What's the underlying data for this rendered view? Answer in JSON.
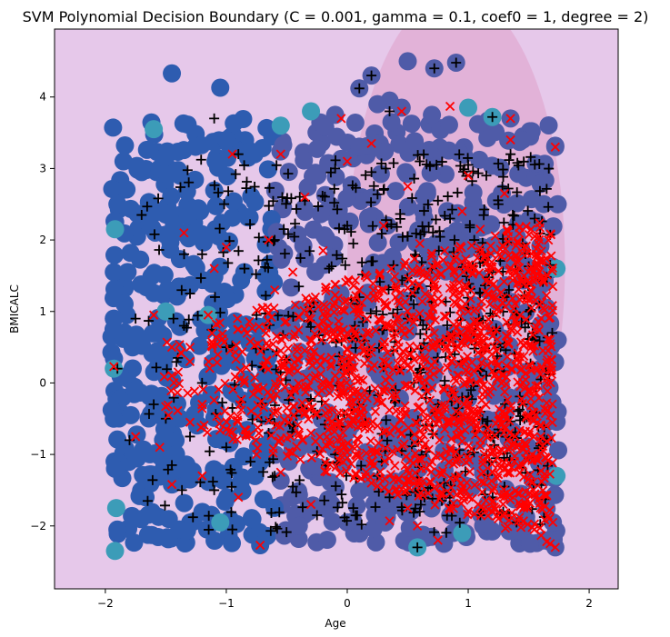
{
  "chart_data": {
    "type": "scatter",
    "title": "SVM Polynomial Decision Boundary (C = 0.001, gamma = 0.1, coef0 = 1, degree = 2)",
    "xlabel": "Age",
    "ylabel": "BMICALC",
    "xlim": [
      -2.42,
      2.24
    ],
    "ylim": [
      -2.88,
      4.95
    ],
    "xticks": [
      -2,
      -1,
      0,
      1,
      2
    ],
    "yticks": [
      -2,
      -1,
      0,
      1,
      2,
      3,
      4
    ],
    "grid": false,
    "background_region": {
      "color": "#e6c8ea",
      "inner_region_color": "#e2b2d8",
      "inner_region_center": [
        0.9,
        1.65
      ],
      "inner_region_radii": [
        0.9,
        3.8
      ]
    },
    "colors": {
      "support_vector_far": "#2e5cb0",
      "support_vector_near": "#4f5ba8",
      "support_vector_highlight": "#3c9cb8",
      "class_plus": "#000000",
      "class_x": "#ff0000"
    },
    "x_range_data": [
      -1.95,
      1.75
    ],
    "y_range_data": [
      -2.35,
      4.5
    ],
    "series": [
      {
        "marker": "o",
        "points": [
          [
            -1.45,
            4.33
          ],
          [
            -1.05,
            4.13
          ],
          [
            0.5,
            4.5
          ],
          [
            0.72,
            4.4
          ],
          [
            0.2,
            4.3
          ],
          [
            0.1,
            4.12
          ],
          [
            -1.92,
            -2.35
          ],
          [
            -1.9,
            -2.05
          ],
          [
            -0.72,
            -2.27
          ],
          [
            0.58,
            -2.3
          ],
          [
            1.72,
            -2.3
          ],
          [
            -1.85,
            3.1
          ],
          [
            -1.6,
            3.55
          ],
          [
            -1.7,
            2.95
          ],
          [
            -1.9,
            2.5
          ],
          [
            -1.92,
            2.15
          ],
          [
            -1.93,
            1.55
          ],
          [
            -1.93,
            0.9
          ],
          [
            -1.93,
            0.2
          ],
          [
            -1.93,
            -0.5
          ],
          [
            -1.92,
            -1.2
          ],
          [
            -1.91,
            -1.75
          ],
          [
            1.72,
            3.3
          ],
          [
            1.74,
            2.5
          ],
          [
            1.73,
            1.6
          ],
          [
            1.74,
            0.6
          ],
          [
            1.74,
            -0.4
          ],
          [
            1.73,
            -1.3
          ],
          [
            1.7,
            -1.95
          ],
          [
            1.35,
            3.7
          ],
          [
            1.0,
            3.85
          ],
          [
            0.45,
            3.85
          ],
          [
            -0.1,
            3.75
          ],
          [
            -0.55,
            3.6
          ],
          [
            -1.0,
            3.4
          ],
          [
            -1.35,
            2.1
          ],
          [
            -1.15,
            0.95
          ],
          [
            -1.45,
            -1.42
          ],
          [
            -1.3,
            -1.35
          ],
          [
            0.95,
            -2.1
          ],
          [
            0.0,
            -1.95
          ],
          [
            -0.4,
            -2.0
          ],
          [
            -1.05,
            -1.95
          ],
          [
            0.8,
            -2.25
          ],
          [
            0.35,
            3.95
          ],
          [
            0.9,
            4.48
          ],
          [
            -1.6,
            2.4
          ],
          [
            -1.75,
            -0.1
          ],
          [
            -1.5,
            1.0
          ],
          [
            1.55,
            -1.0
          ],
          [
            1.6,
            0.2
          ],
          [
            -0.3,
            3.8
          ],
          [
            0.25,
            3.9
          ],
          [
            0.7,
            3.75
          ],
          [
            1.2,
            3.72
          ],
          [
            1.45,
            3.4
          ]
        ]
      },
      {
        "marker": "+",
        "points": [
          [
            0.9,
            4.48
          ],
          [
            0.72,
            4.4
          ],
          [
            0.2,
            4.3
          ],
          [
            0.1,
            4.12
          ],
          [
            1.2,
            3.72
          ],
          [
            0.35,
            3.8
          ],
          [
            -1.1,
            3.7
          ],
          [
            1.35,
            3.2
          ],
          [
            1.0,
            3.05
          ],
          [
            0.6,
            3.1
          ],
          [
            0.2,
            2.95
          ],
          [
            -0.1,
            3.0
          ],
          [
            -0.9,
            3.2
          ],
          [
            0.3,
            2.7
          ],
          [
            0.75,
            2.55
          ],
          [
            1.25,
            2.5
          ],
          [
            1.55,
            2.3
          ],
          [
            -0.35,
            2.55
          ],
          [
            -1.7,
            2.35
          ],
          [
            0.0,
            2.2
          ],
          [
            0.5,
            2.05
          ],
          [
            1.05,
            2.0
          ],
          [
            1.45,
            1.95
          ],
          [
            -0.6,
            2.0
          ],
          [
            -1.2,
            1.8
          ],
          [
            -0.85,
            1.6
          ],
          [
            0.2,
            1.7
          ],
          [
            0.7,
            1.6
          ],
          [
            1.2,
            1.55
          ],
          [
            1.6,
            1.45
          ],
          [
            -0.4,
            1.35
          ],
          [
            -1.3,
            1.25
          ],
          [
            0.1,
            1.2
          ],
          [
            0.55,
            1.1
          ],
          [
            1.0,
            1.05
          ],
          [
            1.4,
            0.95
          ],
          [
            -0.75,
            0.95
          ],
          [
            -1.75,
            0.9
          ],
          [
            0.3,
            0.75
          ],
          [
            0.85,
            0.65
          ],
          [
            1.3,
            0.55
          ],
          [
            -0.2,
            0.6
          ],
          [
            -1.0,
            0.5
          ],
          [
            -1.4,
            0.35
          ],
          [
            0.0,
            0.25
          ],
          [
            0.6,
            0.2
          ],
          [
            1.15,
            0.1
          ],
          [
            1.6,
            0.05
          ],
          [
            -0.55,
            0.15
          ],
          [
            -1.9,
            0.2
          ],
          [
            0.4,
            -0.1
          ],
          [
            0.95,
            -0.2
          ],
          [
            1.45,
            -0.3
          ],
          [
            -0.3,
            -0.25
          ],
          [
            -0.95,
            -0.35
          ],
          [
            -1.6,
            -0.3
          ],
          [
            0.15,
            -0.55
          ],
          [
            0.7,
            -0.6
          ],
          [
            1.25,
            -0.65
          ],
          [
            -0.65,
            -0.7
          ],
          [
            -1.3,
            -0.75
          ],
          [
            -1.8,
            -0.8
          ],
          [
            0.45,
            -0.95
          ],
          [
            1.0,
            -1.0
          ],
          [
            1.5,
            -1.05
          ],
          [
            -0.1,
            -1.0
          ],
          [
            -0.8,
            -1.1
          ],
          [
            -1.45,
            -1.15
          ],
          [
            0.25,
            -1.3
          ],
          [
            0.8,
            -1.4
          ],
          [
            1.3,
            -1.45
          ],
          [
            -0.45,
            -1.45
          ],
          [
            -1.1,
            -1.5
          ],
          [
            -1.65,
            -1.65
          ],
          [
            0.05,
            -1.75
          ],
          [
            0.6,
            -1.8
          ],
          [
            1.1,
            -1.85
          ],
          [
            -0.25,
            -1.85
          ],
          [
            -0.95,
            -2.05
          ],
          [
            0.58,
            -2.3
          ],
          [
            1.4,
            -1.95
          ],
          [
            1.65,
            -0.8
          ],
          [
            1.55,
            0.6
          ],
          [
            1.5,
            1.0
          ],
          [
            -1.5,
            -0.5
          ],
          [
            -1.2,
            0.0
          ],
          [
            -1.35,
            0.8
          ],
          [
            -0.15,
            1.6
          ],
          [
            0.85,
            2.3
          ],
          [
            1.15,
            2.9
          ],
          [
            0.05,
            1.95
          ],
          [
            0.95,
            0.3
          ],
          [
            1.1,
            -0.4
          ],
          [
            0.35,
            -1.6
          ],
          [
            -0.6,
            -1.3
          ],
          [
            -1.0,
            -0.9
          ],
          [
            0.5,
            0.9
          ],
          [
            1.3,
            1.2
          ],
          [
            -0.3,
            1.0
          ],
          [
            0.75,
            -0.3
          ]
        ]
      },
      {
        "marker": "x",
        "points": [
          [
            0.85,
            3.87
          ],
          [
            -0.05,
            3.7
          ],
          [
            0.45,
            3.8
          ],
          [
            1.35,
            3.7
          ],
          [
            1.72,
            3.3
          ],
          [
            1.35,
            3.4
          ],
          [
            0.2,
            3.35
          ],
          [
            -0.55,
            3.2
          ],
          [
            -0.95,
            3.2
          ],
          [
            1.0,
            2.9
          ],
          [
            0.0,
            3.1
          ],
          [
            -0.35,
            2.6
          ],
          [
            0.5,
            2.75
          ],
          [
            1.3,
            2.65
          ],
          [
            -1.35,
            2.1
          ],
          [
            -0.65,
            2.0
          ],
          [
            0.3,
            2.2
          ],
          [
            1.1,
            2.15
          ],
          [
            1.55,
            2.05
          ],
          [
            -1.0,
            1.9
          ],
          [
            -0.2,
            1.85
          ],
          [
            0.6,
            1.95
          ],
          [
            1.35,
            1.75
          ],
          [
            -1.1,
            1.6
          ],
          [
            -0.45,
            1.55
          ],
          [
            0.15,
            1.5
          ],
          [
            0.9,
            1.45
          ],
          [
            1.5,
            1.4
          ],
          [
            -1.15,
            0.95
          ],
          [
            -0.7,
            1.05
          ],
          [
            0.0,
            1.15
          ],
          [
            0.7,
            1.2
          ],
          [
            1.25,
            1.05
          ],
          [
            -1.6,
            0.95
          ],
          [
            -0.9,
            0.75
          ],
          [
            -0.2,
            0.85
          ],
          [
            0.45,
            0.8
          ],
          [
            1.05,
            0.7
          ],
          [
            1.55,
            0.75
          ],
          [
            -1.3,
            0.5
          ],
          [
            -0.55,
            0.45
          ],
          [
            0.2,
            0.5
          ],
          [
            0.85,
            0.4
          ],
          [
            1.4,
            0.35
          ],
          [
            -1.93,
            0.23
          ],
          [
            -1.45,
            0.1
          ],
          [
            -0.85,
            0.0
          ],
          [
            -0.1,
            0.1
          ],
          [
            0.6,
            0.05
          ],
          [
            1.2,
            -0.05
          ],
          [
            1.65,
            0.0
          ],
          [
            -1.2,
            -0.3
          ],
          [
            -0.5,
            -0.35
          ],
          [
            0.25,
            -0.25
          ],
          [
            0.9,
            -0.4
          ],
          [
            1.5,
            -0.45
          ],
          [
            -1.75,
            -0.75
          ],
          [
            -1.0,
            -0.65
          ],
          [
            -0.3,
            -0.7
          ],
          [
            0.45,
            -0.7
          ],
          [
            1.1,
            -0.8
          ],
          [
            1.6,
            -0.75
          ],
          [
            -1.55,
            -0.9
          ],
          [
            -0.75,
            -1.0
          ],
          [
            0.0,
            -1.05
          ],
          [
            0.7,
            -1.1
          ],
          [
            1.3,
            -1.2
          ],
          [
            -1.45,
            -1.42
          ],
          [
            -1.2,
            -1.3
          ],
          [
            -0.55,
            -1.25
          ],
          [
            0.2,
            -1.4
          ],
          [
            0.95,
            -1.5
          ],
          [
            1.55,
            -1.55
          ],
          [
            -0.9,
            -1.6
          ],
          [
            -0.3,
            -1.7
          ],
          [
            0.5,
            -1.75
          ],
          [
            1.2,
            -1.8
          ],
          [
            -0.72,
            -2.27
          ],
          [
            0.58,
            -2.0
          ],
          [
            0.35,
            -1.93
          ],
          [
            0.75,
            -2.2
          ],
          [
            1.72,
            -2.3
          ],
          [
            1.7,
            -1.95
          ],
          [
            1.25,
            -1.9
          ],
          [
            0.6,
            1.6
          ],
          [
            1.0,
            1.0
          ],
          [
            0.3,
            0.2
          ],
          [
            1.15,
            0.5
          ],
          [
            0.8,
            -0.1
          ],
          [
            0.4,
            1.3
          ],
          [
            -0.25,
            0.3
          ],
          [
            1.45,
            -0.9
          ],
          [
            0.1,
            -0.45
          ],
          [
            0.95,
            2.4
          ],
          [
            -1.3,
            -0.55
          ],
          [
            -0.6,
            1.3
          ]
        ]
      }
    ]
  }
}
